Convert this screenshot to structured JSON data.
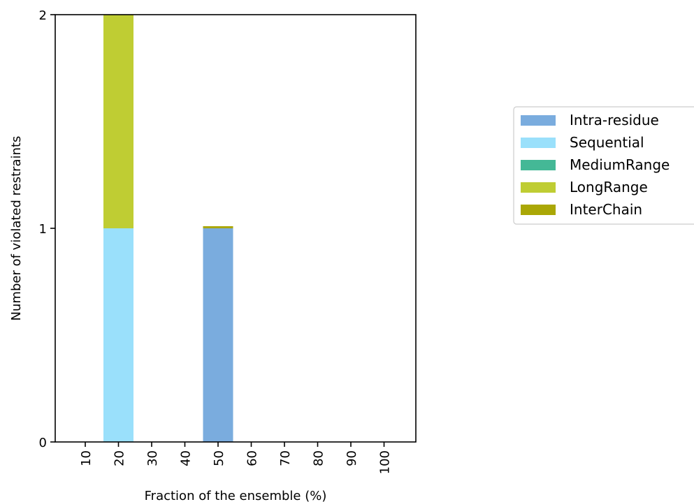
{
  "chart_data": {
    "type": "bar",
    "stacked": true,
    "xlabel": "Fraction of the ensemble (%)",
    "ylabel": "Number of violated restraints",
    "categories": [
      "10",
      "20",
      "30",
      "40",
      "50",
      "60",
      "70",
      "80",
      "90",
      "100"
    ],
    "ylim": [
      0,
      2
    ],
    "yticks": [
      "0",
      "1",
      "2"
    ],
    "grid": false,
    "legend_position": "right",
    "series": [
      {
        "name": "Intra-residue",
        "color": "#7aacde",
        "values": [
          0,
          0,
          0,
          0,
          1,
          0,
          0,
          0,
          0,
          0
        ]
      },
      {
        "name": "Sequential",
        "color": "#9ae0fb",
        "values": [
          0,
          1,
          0,
          0,
          0,
          0,
          0,
          0,
          0,
          0
        ]
      },
      {
        "name": "MediumRange",
        "color": "#44b896",
        "values": [
          0,
          0,
          0,
          0,
          0,
          0,
          0,
          0,
          0,
          0
        ]
      },
      {
        "name": "LongRange",
        "color": "#bfcd33",
        "values": [
          0,
          1,
          0,
          0,
          0,
          0,
          0,
          0,
          0,
          0
        ]
      },
      {
        "name": "InterChain",
        "color": "#aaa706",
        "values": [
          0,
          0,
          0,
          0,
          0.01,
          0,
          0,
          0,
          0,
          0
        ]
      }
    ]
  }
}
